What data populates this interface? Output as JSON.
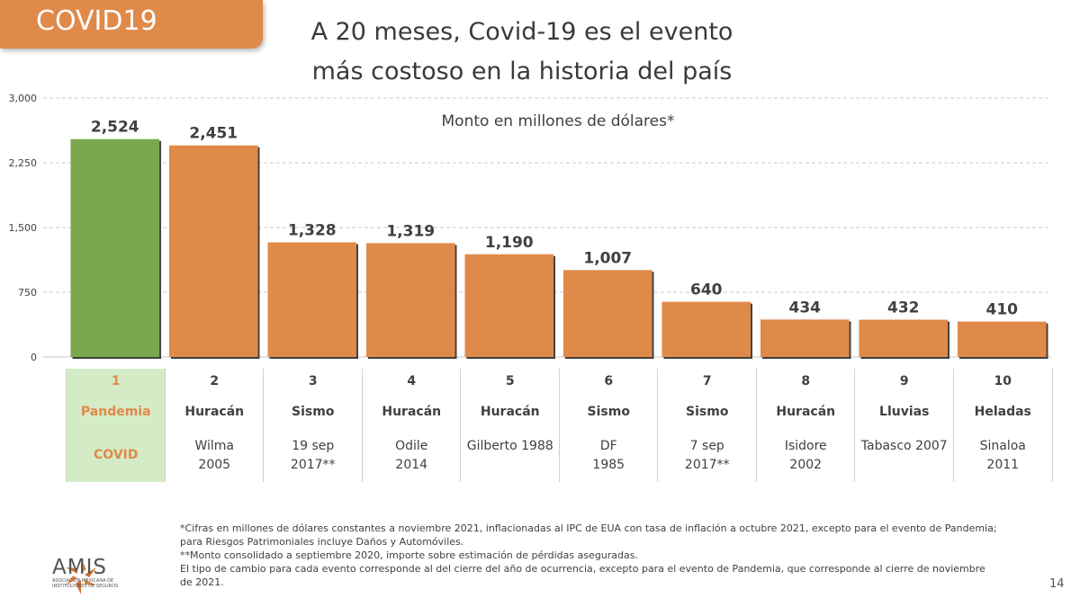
{
  "tag": "COVID19",
  "title": "A 20 meses, Covid-19 es el evento más costoso en la historia del país",
  "chart_data": {
    "type": "bar",
    "subtitle": "Monto en millones de dólares*",
    "categories": [
      "Pandemia COVID",
      "Huracán Wilma 2005",
      "Sismo 19 sep 2017**",
      "Huracán Odile 2014",
      "Huracán Gilberto 1988",
      "Sismo DF 1985",
      "Sismo 7 sep 2017**",
      "Huracán Isidore 2002",
      "Lluvias Tabasco 2007",
      "Heladas Sinaloa 2011"
    ],
    "values": [
      2524,
      2451,
      1328,
      1319,
      1190,
      1007,
      640,
      434,
      432,
      410
    ],
    "value_labels": [
      "2,524",
      "2,451",
      "1,328",
      "1,319",
      "1,190",
      "1,007",
      "640",
      "434",
      "432",
      "410"
    ],
    "ylim": [
      0,
      3000
    ],
    "yticks": [
      0,
      750,
      1500,
      2250,
      3000
    ],
    "ytick_labels": [
      "0",
      "750",
      "1,500",
      "2,250",
      "3,000"
    ],
    "grid": true,
    "colors": {
      "highlight": "#7aa84f",
      "default": "#e08a4a"
    },
    "highlight_index": 0
  },
  "table": [
    {
      "rank": "1",
      "category": "Pandemia",
      "name": "COVID"
    },
    {
      "rank": "2",
      "category": "Huracán",
      "name": "Wilma\n2005"
    },
    {
      "rank": "3",
      "category": "Sismo",
      "name": "19 sep\n2017**"
    },
    {
      "rank": "4",
      "category": "Huracán",
      "name": "Odile\n2014"
    },
    {
      "rank": "5",
      "category": "Huracán",
      "name": "Gilberto 1988"
    },
    {
      "rank": "6",
      "category": "Sismo",
      "name": "DF\n1985"
    },
    {
      "rank": "7",
      "category": "Sismo",
      "name": "7 sep\n2017**"
    },
    {
      "rank": "8",
      "category": "Huracán",
      "name": "Isidore\n2002"
    },
    {
      "rank": "9",
      "category": "Lluvias",
      "name": "Tabasco 2007"
    },
    {
      "rank": "10",
      "category": "Heladas",
      "name": "Sinaloa\n2011"
    }
  ],
  "notes": [
    "*Cifras en millones de dólares constantes a noviembre 2021, inflacionadas al IPC de EUA con tasa de inflación a octubre 2021, excepto para el evento de Pandemia; para Riesgos Patrimoniales incluye Daños y Automóviles.",
    "**Monto consolidado a septiembre 2020, importe sobre estimación de pérdidas aseguradas.",
    "El tipo de cambio para cada evento corresponde al del cierre del año de ocurrencia, excepto para el evento de Pandemia, que corresponde al cierre de noviembre de 2021."
  ],
  "logo": {
    "name": "AMIS",
    "subtitle": "ASOCIACIÓN MEXICANA DE INSTITUCIONES DE SEGUROS",
    "icon": "amis-logo-icon"
  },
  "page_number": "14"
}
